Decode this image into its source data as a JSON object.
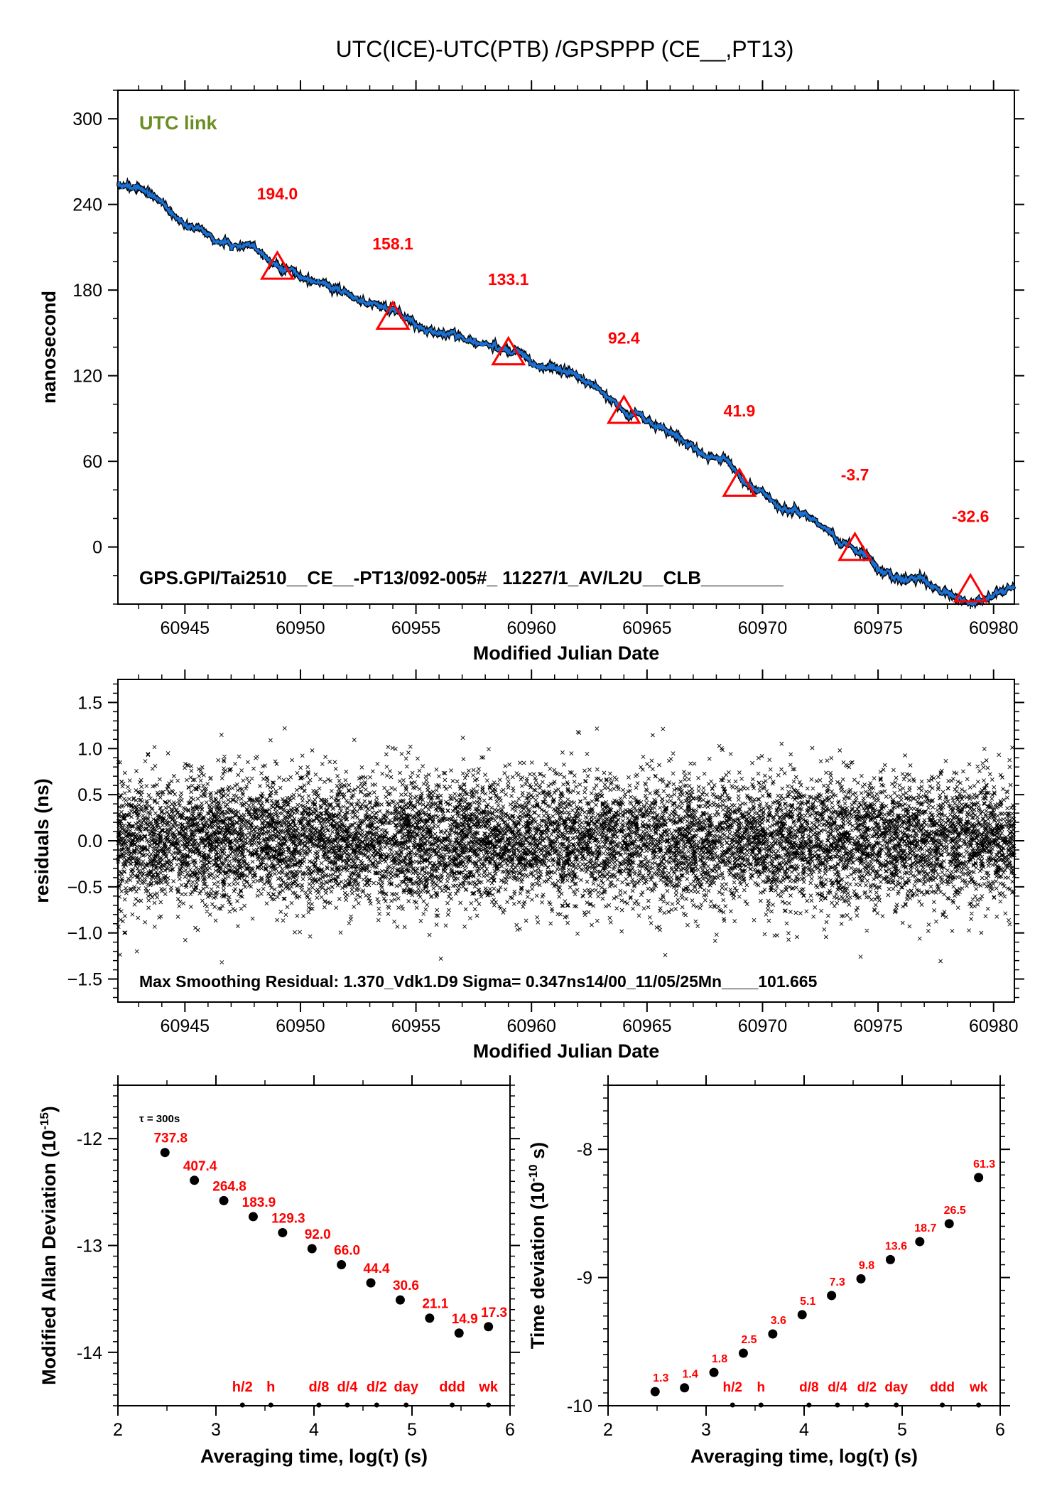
{
  "title": "UTC(ICE)-UTC(PTB)  /GPSPPP  (CE__,PT13)",
  "colors": {
    "trace": "#1a6fd1",
    "marker": "#ff0000",
    "label": "#ff0000",
    "utc_link": "#6b8e23",
    "points": "#000000"
  },
  "chart_data": [
    {
      "type": "line",
      "name": "link",
      "xlabel": "Modified Julian Date",
      "ylabel": "nanosecond",
      "xlim": [
        60942.1,
        60980.9
      ],
      "ylim": [
        -40,
        320
      ],
      "xticks": [
        60945,
        60950,
        60955,
        60960,
        60965,
        60970,
        60975,
        60980
      ],
      "yticks": [
        0,
        60,
        120,
        180,
        240,
        300
      ],
      "legend_text": "UTC link",
      "footer_text": "GPS.GPI/Tai2510__CE__-PT13/092-005#_  11227/1_AV/L2U__CLB________",
      "series_points": [
        [
          60942.1,
          254
        ],
        [
          60944,
          240
        ],
        [
          60946,
          217
        ],
        [
          60948,
          206
        ],
        [
          60949,
          196
        ],
        [
          60951,
          184
        ],
        [
          60953,
          171
        ],
        [
          60954,
          163
        ],
        [
          60956,
          148
        ],
        [
          60958,
          143
        ],
        [
          60959,
          135
        ],
        [
          60961,
          123
        ],
        [
          60963,
          111
        ],
        [
          60964,
          95
        ],
        [
          60966,
          81
        ],
        [
          60968,
          64
        ],
        [
          60969,
          45
        ],
        [
          60971,
          28
        ],
        [
          60973,
          12
        ],
        [
          60974,
          0
        ],
        [
          60975,
          -17
        ],
        [
          60976,
          -24
        ],
        [
          60977,
          -23
        ],
        [
          60978,
          -32
        ],
        [
          60979,
          -37
        ],
        [
          60980,
          -32
        ],
        [
          60980.9,
          -28
        ]
      ],
      "markers": [
        {
          "x": 60949,
          "y": 196,
          "label": "194.0",
          "label_y": 248
        },
        {
          "x": 60954,
          "y": 161,
          "label": "158.1",
          "label_y": 213
        },
        {
          "x": 60959,
          "y": 136,
          "label": "133.1",
          "label_y": 188
        },
        {
          "x": 60964,
          "y": 95,
          "label": "92.4",
          "label_y": 147
        },
        {
          "x": 60969,
          "y": 44,
          "label": "41.9",
          "label_y": 96
        },
        {
          "x": 60974,
          "y": -1,
          "label": "-3.7",
          "label_y": 51
        },
        {
          "x": 60979,
          "y": -30,
          "label": "-32.6",
          "label_y": 22
        }
      ]
    },
    {
      "type": "scatter",
      "name": "residuals",
      "xlabel": "Modified Julian Date",
      "ylabel": "residuals (ns)",
      "xlim": [
        60942.1,
        60980.9
      ],
      "ylim": [
        -1.75,
        1.75
      ],
      "xticks": [
        60945,
        60950,
        60955,
        60960,
        60965,
        60970,
        60975,
        60980
      ],
      "yticks": [
        -1.5,
        -1.0,
        -0.5,
        0.0,
        0.5,
        1.0,
        1.5
      ],
      "ytick_labels": [
        "−1.5",
        "−1.0",
        "−0.5",
        "0.0",
        "0.5",
        "1.0",
        "1.5"
      ],
      "sigma_ns": 0.347,
      "max_residual": 1.37,
      "footer_text": "Max Smoothing Residual: 1.370_Vdk1.D9  Sigma= 0.347ns14/00_11/05/25Mn____101.665"
    },
    {
      "type": "scatter",
      "name": "mdev",
      "xlabel": "Averaging time, log(τ) (s)",
      "ylabel_main": "Modified Allan Deviation (10",
      "ylabel_exp": "-15",
      "ylabel_end": ")",
      "xlim": [
        2,
        6
      ],
      "ylim": [
        -14.5,
        -11.5
      ],
      "xticks": [
        2,
        3,
        4,
        5,
        6
      ],
      "yticks": [
        -14,
        -13,
        -12
      ],
      "tau_note": "τ = 300s",
      "x": [
        2.48,
        2.78,
        3.08,
        3.38,
        3.68,
        3.98,
        4.28,
        4.58,
        4.88,
        5.18,
        5.48,
        5.78
      ],
      "y": [
        -12.13,
        -12.39,
        -12.58,
        -12.73,
        -12.88,
        -13.03,
        -13.18,
        -13.35,
        -13.51,
        -13.68,
        -13.82,
        -13.76
      ],
      "labels": [
        "737.8",
        "407.4",
        "264.8",
        "183.9",
        "129.3",
        "92.0",
        "66.0",
        "44.4",
        "30.6",
        "21.1",
        "14.9",
        "17.3"
      ],
      "interval_marks": [
        {
          "x": 3.27,
          "label": "h/2"
        },
        {
          "x": 3.56,
          "label": "h"
        },
        {
          "x": 4.05,
          "label": "d/8"
        },
        {
          "x": 4.34,
          "label": "d/4"
        },
        {
          "x": 4.64,
          "label": "d/2"
        },
        {
          "x": 4.94,
          "label": "day"
        },
        {
          "x": 5.41,
          "label": "ddd"
        },
        {
          "x": 5.78,
          "label": "wk"
        }
      ]
    },
    {
      "type": "scatter",
      "name": "tdev",
      "xlabel": "Averaging time, log(τ) (s)",
      "ylabel_main": "Time deviation (10",
      "ylabel_exp": "-10",
      "ylabel_end": " s)",
      "xlim": [
        2,
        6
      ],
      "ylim": [
        -10,
        -7.5
      ],
      "xticks": [
        2,
        3,
        4,
        5,
        6
      ],
      "yticks": [
        -10,
        -9,
        -8
      ],
      "x": [
        2.48,
        2.78,
        3.08,
        3.38,
        3.68,
        3.98,
        4.28,
        4.58,
        4.88,
        5.18,
        5.48,
        5.78
      ],
      "y": [
        -9.89,
        -9.86,
        -9.74,
        -9.59,
        -9.44,
        -9.29,
        -9.14,
        -9.01,
        -8.86,
        -8.72,
        -8.58,
        -8.22
      ],
      "labels": [
        "1.3",
        "1.4",
        "1.8",
        "2.5",
        "3.6",
        "5.1",
        "7.3",
        "9.8",
        "13.6",
        "18.7",
        "26.5",
        "61.3"
      ],
      "interval_marks": [
        {
          "x": 3.27,
          "label": "h/2"
        },
        {
          "x": 3.56,
          "label": "h"
        },
        {
          "x": 4.05,
          "label": "d/8"
        },
        {
          "x": 4.34,
          "label": "d/4"
        },
        {
          "x": 4.64,
          "label": "d/2"
        },
        {
          "x": 4.94,
          "label": "day"
        },
        {
          "x": 5.41,
          "label": "ddd"
        },
        {
          "x": 5.78,
          "label": "wk"
        }
      ]
    }
  ]
}
